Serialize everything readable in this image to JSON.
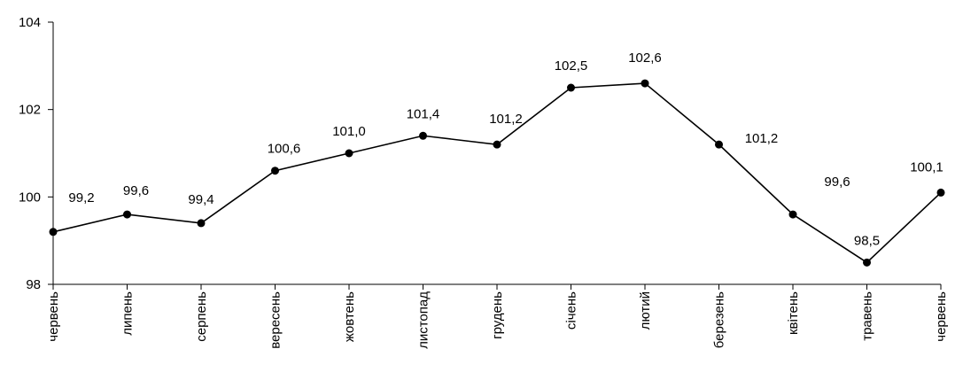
{
  "chart_data": {
    "type": "line",
    "categories": [
      "червень",
      "липень",
      "серпень",
      "вересень",
      "жовтень",
      "листопад",
      "грудень",
      "січень",
      "лютий",
      "березень",
      "квітень",
      "травень",
      "червень"
    ],
    "values": [
      99.2,
      99.6,
      99.4,
      100.6,
      101.0,
      101.4,
      101.2,
      102.5,
      102.6,
      101.2,
      99.6,
      98.5,
      100.1
    ],
    "data_labels": [
      "99,2",
      "99,6",
      "99,4",
      "100,6",
      "101,0",
      "101,4",
      "101,2",
      "102,5",
      "102,6",
      "101,2",
      "99,6",
      "98,5",
      "100,1"
    ],
    "y_ticks": [
      98,
      100,
      102,
      104
    ],
    "y_tick_labels": [
      "98",
      "100",
      "102",
      "104"
    ],
    "ylim": [
      98,
      104
    ],
    "grid": false,
    "legend": "none",
    "line_color": "#000000",
    "marker_color": "#000000"
  }
}
